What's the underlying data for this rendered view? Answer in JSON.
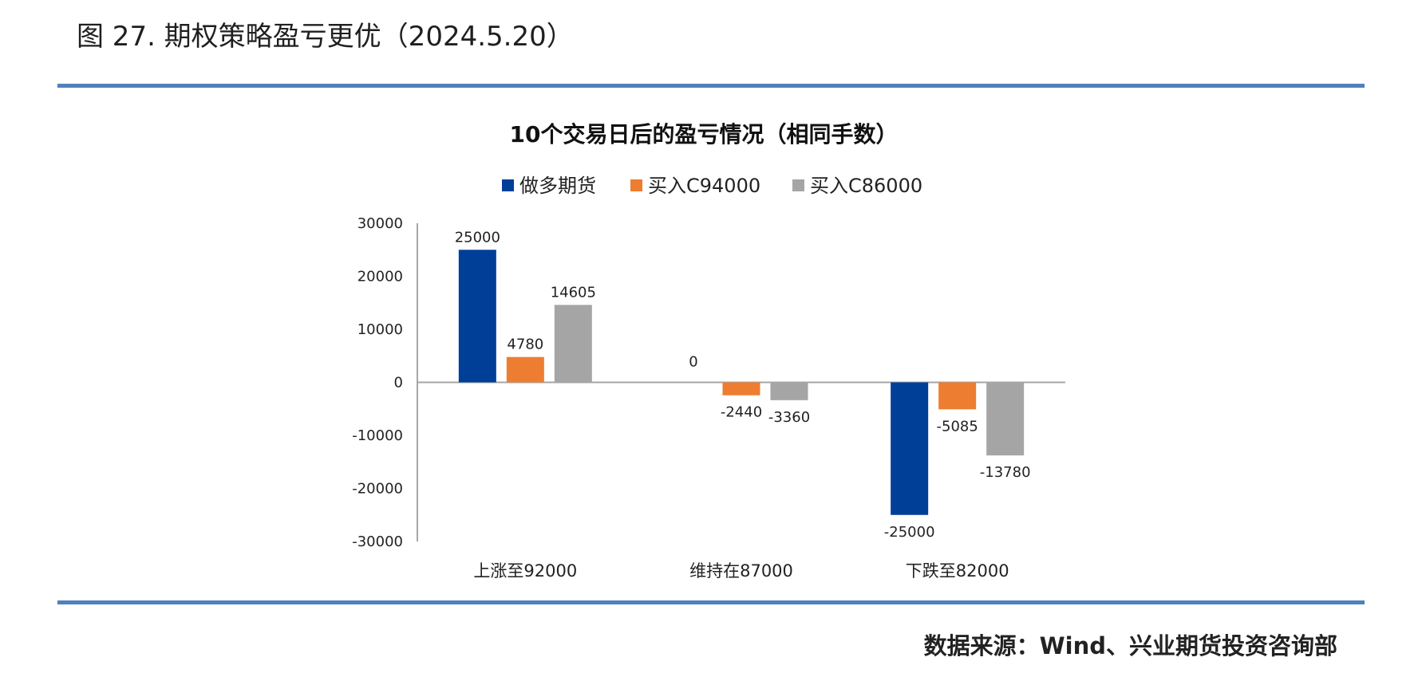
{
  "figure": {
    "title": "图 27. 期权策略盈亏更优（2024.5.20）",
    "source": "数据来源：Wind、兴业期货投资咨询部"
  },
  "colors": {
    "rule": "#4f81bd",
    "axis": "#a6a6a6"
  },
  "chart_data": {
    "type": "bar",
    "title": "10个交易日后的盈亏情况（相同手数）",
    "xlabel": "",
    "ylabel": "",
    "ylim": [
      -30000,
      30000
    ],
    "yticks": [
      "30000",
      "20000",
      "10000",
      "0",
      "-10000",
      "-20000",
      "-30000"
    ],
    "ytick_values": [
      30000,
      20000,
      10000,
      0,
      -10000,
      -20000,
      -30000
    ],
    "legend_position": "top-center",
    "grid": false,
    "categories": [
      "上涨至92000",
      "维持在87000",
      "下跌至82000"
    ],
    "series": [
      {
        "name": "做多期货",
        "color": "#003f98",
        "values": [
          25000,
          0,
          -25000
        ],
        "labels": [
          "25000",
          "0",
          "-25000"
        ]
      },
      {
        "name": "买入C94000",
        "color": "#ed7d31",
        "values": [
          4780,
          -2440,
          -5085
        ],
        "labels": [
          "4780",
          "-2440",
          "-5085"
        ]
      },
      {
        "name": "买入C86000",
        "color": "#a5a5a5",
        "values": [
          14605,
          -3360,
          -13780
        ],
        "labels": [
          "14605",
          "-3360",
          "-13780"
        ]
      }
    ]
  }
}
